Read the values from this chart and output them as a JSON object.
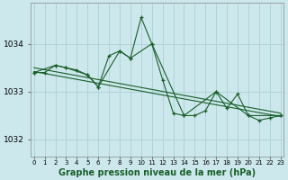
{
  "bg_color": "#cce8ec",
  "grid_color": "#b0d4d8",
  "line_color": "#1a5e2a",
  "title": "Graphe pression niveau de la mer (hPa)",
  "title_fontsize": 7.0,
  "ylabel_ticks": [
    1032,
    1033,
    1034
  ],
  "ylabel_fontsize": 6.5,
  "xlim": [
    -0.3,
    23.3
  ],
  "ylim": [
    1031.65,
    1034.85
  ],
  "xticks": [
    0,
    1,
    2,
    3,
    4,
    5,
    6,
    7,
    8,
    9,
    10,
    11,
    12,
    13,
    14,
    15,
    16,
    17,
    18,
    19,
    20,
    21,
    22,
    23
  ],
  "xtick_fontsize": 5.0,
  "series_main": {
    "x": [
      0,
      1,
      2,
      3,
      4,
      5,
      6,
      7,
      8,
      9,
      10,
      11,
      12,
      13,
      14,
      15,
      16,
      17,
      18,
      19,
      20,
      21,
      22,
      23
    ],
    "y": [
      1033.4,
      1033.4,
      1033.55,
      1033.5,
      1033.45,
      1033.35,
      1033.1,
      1033.75,
      1033.85,
      1033.7,
      1034.55,
      1034.0,
      1033.25,
      1032.55,
      1032.5,
      1032.5,
      1032.6,
      1033.0,
      1032.65,
      1032.95,
      1032.5,
      1032.4,
      1032.45,
      1032.5
    ]
  },
  "series_sparse": {
    "x": [
      0,
      2,
      3,
      5,
      6,
      8,
      9,
      11,
      14,
      17,
      20,
      23
    ],
    "y": [
      1033.4,
      1033.55,
      1033.5,
      1033.35,
      1033.1,
      1033.85,
      1033.7,
      1034.0,
      1032.5,
      1033.0,
      1032.5,
      1032.5
    ]
  },
  "trend1": {
    "x": [
      0,
      23
    ],
    "y": [
      1033.5,
      1032.55
    ]
  },
  "trend2": {
    "x": [
      0,
      23
    ],
    "y": [
      1033.42,
      1032.48
    ]
  }
}
